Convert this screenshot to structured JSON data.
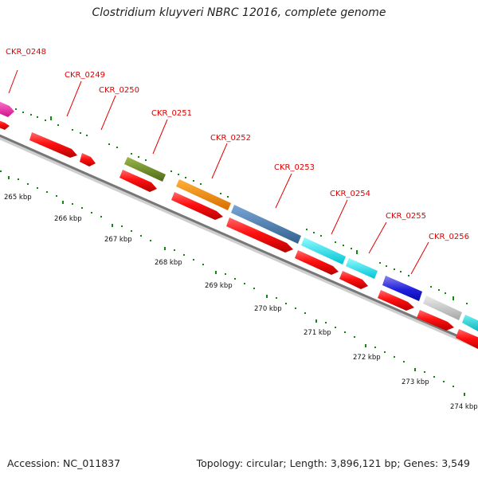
{
  "title": "Clostridium kluyveri NBRC 12016, complete genome",
  "footer": {
    "accession": "Accession: NC_011837",
    "summary": "Topology: circular; Length: 3,896,121 bp; Genes: 3,549"
  },
  "colors": {
    "reverse_strand_gene": "#ff0000",
    "backbone": "#777777",
    "tick_green": "#118811",
    "label_red": "#e00000"
  },
  "kbp_labels": [
    "265 kbp",
    "266 kbp",
    "267 kbp",
    "268 kbp",
    "269 kbp",
    "270 kbp",
    "271 kbp",
    "272 kbp",
    "273 kbp",
    "274 kbp"
  ],
  "gene_labels": [
    {
      "name": "CKR_0248",
      "color": "#ff1aa8"
    },
    {
      "name": "CKR_0249",
      "color": "#ff0000"
    },
    {
      "name": "CKR_0250",
      "color": "#ff0000"
    },
    {
      "name": "CKR_0251",
      "color": "#6b8e23"
    },
    {
      "name": "CKR_0252",
      "color": "#ff8c00"
    },
    {
      "name": "CKR_0253",
      "color": "#4a7fb5"
    },
    {
      "name": "CKR_0254",
      "color": "#00e5ee"
    },
    {
      "name": "CKR_0255",
      "color": "#00e5ee"
    },
    {
      "name": "CKR_0256",
      "color": "#2222cc"
    }
  ]
}
